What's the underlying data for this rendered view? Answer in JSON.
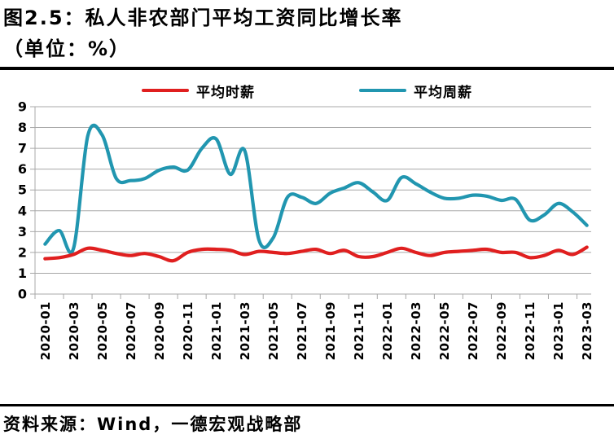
{
  "title": "图2.5：私人非农部门平均工资同比增长率",
  "subtitle": "（单位：%）",
  "source": "资料来源：Wind，一德宏观战略部",
  "legend": [
    {
      "label": "平均时薪",
      "color": "#e01f1f"
    },
    {
      "label": "平均周薪",
      "color": "#2196b0"
    }
  ],
  "colors": {
    "hourly_line": "#e01f1f",
    "weekly_line": "#2196b0",
    "gridline": "#a8a8a8",
    "text": "#000000",
    "divider": "#000000",
    "background": "#ffffff"
  },
  "chart_data": {
    "type": "line",
    "title": "私人非农部门平均工资同比增长率",
    "unit": "%",
    "xlabel": "",
    "ylabel": "",
    "ylim": [
      0,
      9
    ],
    "y_ticks": [
      0,
      1,
      2,
      3,
      4,
      5,
      6,
      7,
      8,
      9
    ],
    "grid": "horizontal",
    "legend_position": "top",
    "x": [
      "2020-01",
      "2020-02",
      "2020-03",
      "2020-04",
      "2020-05",
      "2020-06",
      "2020-07",
      "2020-08",
      "2020-09",
      "2020-10",
      "2020-11",
      "2020-12",
      "2021-01",
      "2021-02",
      "2021-03",
      "2021-04",
      "2021-05",
      "2021-06",
      "2021-07",
      "2021-08",
      "2021-09",
      "2021-10",
      "2021-11",
      "2021-12",
      "2022-01",
      "2022-02",
      "2022-03",
      "2022-04",
      "2022-05",
      "2022-06",
      "2022-07",
      "2022-08",
      "2022-09",
      "2022-10",
      "2022-11",
      "2022-12",
      "2023-01",
      "2023-02",
      "2023-03"
    ],
    "x_tick_labels": [
      "2020-01",
      "2020-03",
      "2020-05",
      "2020-07",
      "2020-09",
      "2020-11",
      "2021-01",
      "2021-03",
      "2021-05",
      "2021-07",
      "2021-09",
      "2021-11",
      "2022-01",
      "2022-03",
      "2022-05",
      "2022-07",
      "2022-09",
      "2022-11",
      "2023-01",
      "2023-03"
    ],
    "series": [
      {
        "name": "平均时薪",
        "color": "#e01f1f",
        "values": [
          1.7,
          1.75,
          1.9,
          2.2,
          2.1,
          1.95,
          1.85,
          1.95,
          1.8,
          1.6,
          2.0,
          2.15,
          2.15,
          2.1,
          1.9,
          2.05,
          2.0,
          1.95,
          2.05,
          2.15,
          1.95,
          2.1,
          1.8,
          1.8,
          2.0,
          2.2,
          2.0,
          1.85,
          2.0,
          2.05,
          2.1,
          2.15,
          2.0,
          2.0,
          1.75,
          1.85,
          2.1,
          1.9,
          2.25
        ]
      },
      {
        "name": "平均周薪",
        "color": "#2196b0",
        "values": [
          2.4,
          3.05,
          2.2,
          7.6,
          7.65,
          5.55,
          5.45,
          5.55,
          5.95,
          6.1,
          5.95,
          7.0,
          7.45,
          5.75,
          6.9,
          2.6,
          2.7,
          4.65,
          4.65,
          4.35,
          4.85,
          5.1,
          5.35,
          4.9,
          4.5,
          5.6,
          5.3,
          4.9,
          4.6,
          4.6,
          4.75,
          4.7,
          4.5,
          4.55,
          3.55,
          3.8,
          4.35,
          3.95,
          3.3
        ]
      }
    ]
  }
}
